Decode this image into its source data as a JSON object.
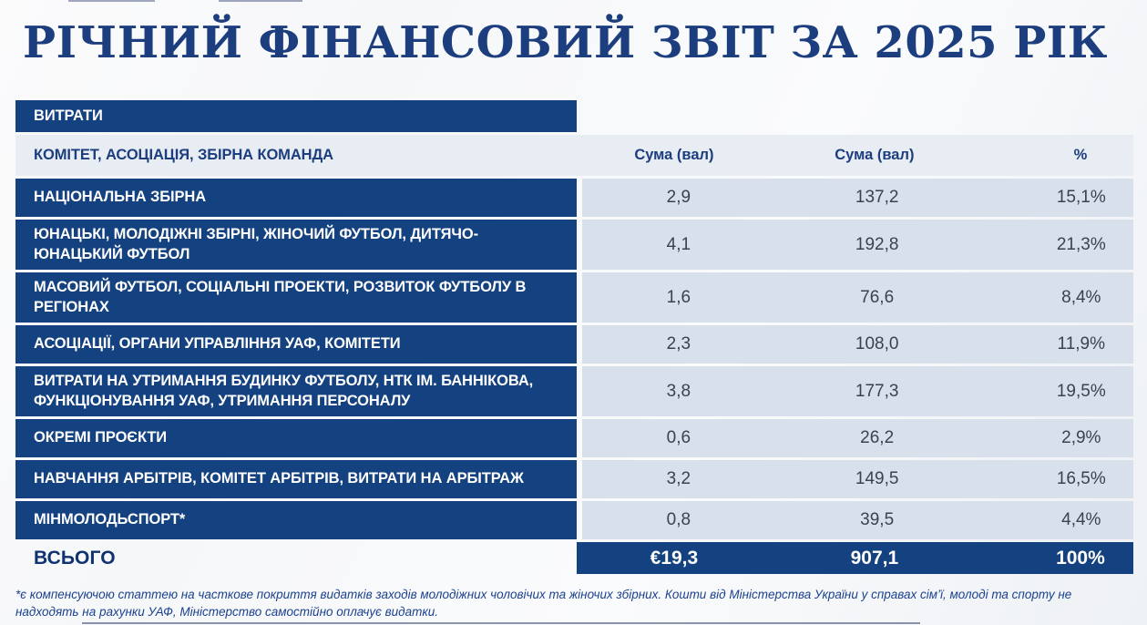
{
  "title": "РІЧНИЙ ФІНАНСОВИЙ ЗВІТ ЗА 2025 РІК",
  "colors": {
    "primary_blue": "#14417f",
    "light_row": "#d8e0ec",
    "header_row_bg": "#e8ecf3",
    "title_navy": "#1c3e7e",
    "value_text": "#39434f",
    "footnote_blue": "#1a418f"
  },
  "table": {
    "section_header": "ВИТРАТИ",
    "row_header": "КОМІТЕТ, АСОЦІАЦІЯ, ЗБІРНА КОМАНДА",
    "columns": {
      "col1": "Сума (вал)",
      "col2": "Сума (вал)",
      "col3": "%"
    },
    "rows": [
      {
        "label": "НАЦІОНАЛЬНА ЗБІРНА",
        "val1": "2,9",
        "val2": "137,2",
        "pct": "15,1%"
      },
      {
        "label": "ЮНАЦЬКІ, МОЛОДІЖНІ ЗБІРНІ, ЖІНОЧИЙ ФУТБОЛ, ДИТЯЧО-ЮНАЦЬКИЙ ФУТБОЛ",
        "val1": "4,1",
        "val2": "192,8",
        "pct": "21,3%"
      },
      {
        "label": "МАСОВИЙ ФУТБОЛ, СОЦІАЛЬНІ ПРОЕКТИ, РОЗВИТОК ФУТБОЛУ В РЕГІОНАХ",
        "val1": "1,6",
        "val2": "76,6",
        "pct": "8,4%"
      },
      {
        "label": "АСОЦІАЦІЇ, ОРГАНИ УПРАВЛІННЯ УАФ, КОМІТЕТИ",
        "val1": "2,3",
        "val2": "108,0",
        "pct": "11,9%"
      },
      {
        "label": "ВИТРАТИ НА УТРИМАННЯ БУДИНКУ ФУТБОЛУ, НТК ІМ. БАННІКОВА, ФУНКЦІОНУВАННЯ УАФ, УТРИМАННЯ ПЕРСОНАЛУ",
        "val1": "3,8",
        "val2": "177,3",
        "pct": "19,5%"
      },
      {
        "label": "ОКРЕМІ ПРОЄКТИ",
        "val1": "0,6",
        "val2": "26,2",
        "pct": "2,9%"
      },
      {
        "label": "НАВЧАННЯ АРБІТРІВ, КОМІТЕТ АРБІТРІВ, ВИТРАТИ НА АРБІТРАЖ",
        "val1": "3,2",
        "val2": "149,5",
        "pct": "16,5%"
      },
      {
        "label": "МІНМОЛОДЬСПОРТ*",
        "val1": "0,8",
        "val2": "39,5",
        "pct": "4,4%"
      }
    ],
    "total": {
      "label": "ВСЬОГО",
      "val1": "€19,3",
      "val2": "907,1",
      "pct": "100%"
    }
  },
  "footnote": "*є компенсуючою статтею на часткове покриття видатків заходів молодіжних чоловічих та жіночих збірних. Кошти від Міністерства України у справах сім’ї, молоді та спорту не надходять на рахунки УАФ, Міністерство самостійно оплачує видатки."
}
